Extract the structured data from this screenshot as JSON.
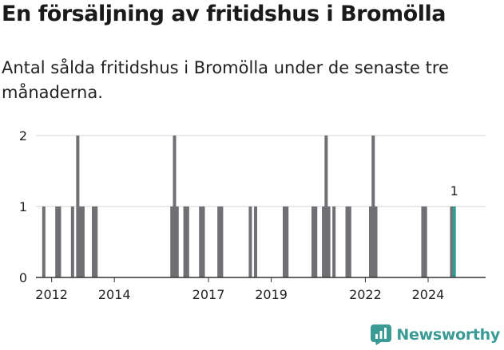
{
  "title": "En försäljning av fritidshus i Bromölla",
  "subtitle": "Antal sålda fritidshus i Bromölla under de senaste tre månaderna.",
  "brand": {
    "name": "Newsworthy",
    "icon": "chart-logo-icon",
    "color": "#3a9a94"
  },
  "colors": {
    "bar": "#707074",
    "highlight": "#2e9e94",
    "grid": "#d6d6d6",
    "axis": "#333333"
  },
  "chart_data": {
    "type": "bar",
    "x_axis_type": "date",
    "xlabel": "",
    "ylabel": "",
    "ylim": [
      0,
      2
    ],
    "xlim": [
      "2011-07",
      "2025-11"
    ],
    "x_ticks": [
      "2012",
      "2014",
      "2017",
      "2019",
      "2022",
      "2024"
    ],
    "y_ticks": [
      0,
      1,
      2
    ],
    "grid": true,
    "highlight_label": "1",
    "series": [
      {
        "x": [
          "2011-10",
          "2012-03",
          "2012-04",
          "2012-09",
          "2012-11",
          "2012-12",
          "2013-01",
          "2013-05",
          "2013-06",
          "2015-11",
          "2015-12",
          "2016-01",
          "2016-04",
          "2016-05",
          "2016-10",
          "2016-11",
          "2017-05",
          "2017-06",
          "2018-05",
          "2018-07",
          "2019-06",
          "2019-07",
          "2020-05",
          "2020-06",
          "2020-09",
          "2020-10",
          "2020-11",
          "2021-01",
          "2021-06",
          "2021-07",
          "2022-03",
          "2022-04",
          "2022-05",
          "2023-11",
          "2023-12",
          "2024-10",
          "2024-11"
        ],
        "values": [
          1,
          1,
          1,
          1,
          2,
          1,
          1,
          1,
          1,
          1,
          2,
          1,
          1,
          1,
          1,
          1,
          1,
          1,
          1,
          1,
          1,
          1,
          1,
          1,
          1,
          2,
          1,
          1,
          1,
          1,
          1,
          2,
          1,
          1,
          1,
          1,
          1
        ],
        "highlight": "2024-11"
      }
    ]
  }
}
